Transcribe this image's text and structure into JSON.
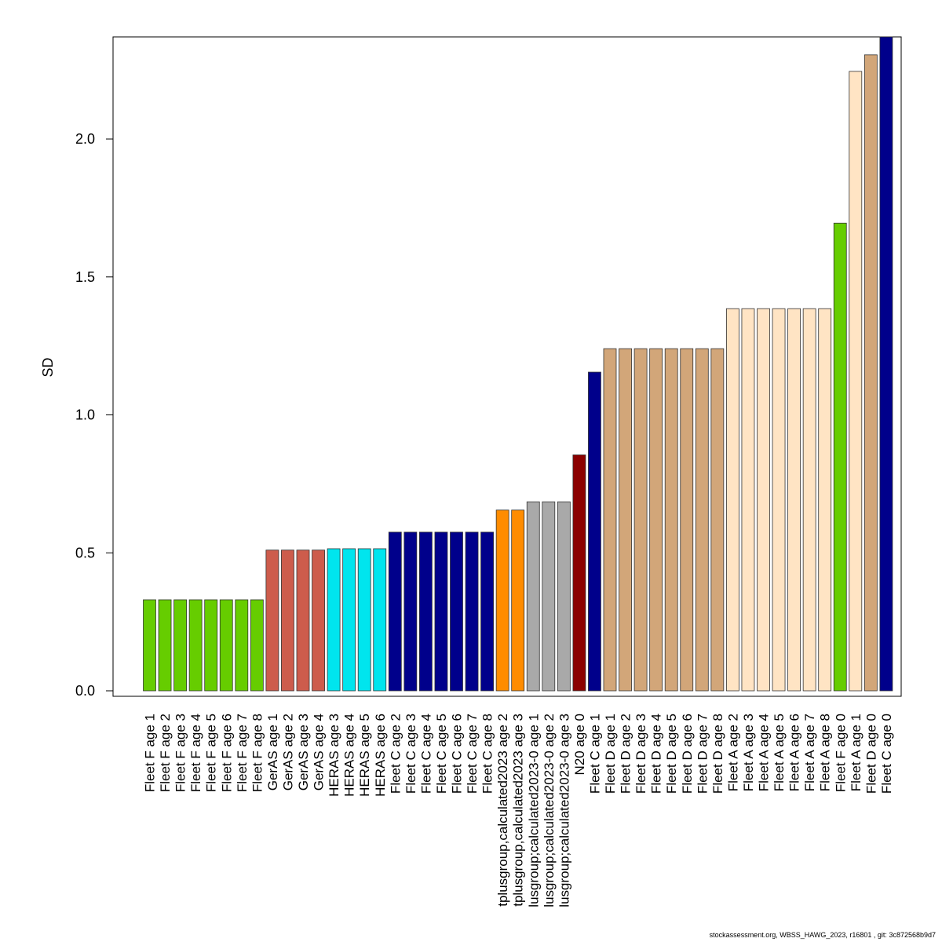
{
  "chart_data": {
    "type": "bar",
    "ylabel": "SD",
    "xlabel": "",
    "ylim": [
      0,
      2.37
    ],
    "yticks": [
      0.0,
      0.5,
      1.0,
      1.5,
      2.0
    ],
    "ytick_labels": [
      "0.0",
      "0.5",
      "1.0",
      "1.5",
      "2.0"
    ],
    "grid": false,
    "categories": [
      "Fleet F age 1",
      "Fleet F age 2",
      "Fleet F age 3",
      "Fleet F age 4",
      "Fleet F age 5",
      "Fleet F age 6",
      "Fleet F age 7",
      "Fleet F age 8",
      "GerAS age 1",
      "GerAS age 2",
      "GerAS age 3",
      "GerAS age 4",
      "HERAS age 3",
      "HERAS age 4",
      "HERAS age 5",
      "HERAS age 6",
      "Fleet C age 2",
      "Fleet C age 3",
      "Fleet C age 4",
      "Fleet C age 5",
      "Fleet C age 6",
      "Fleet C age 7",
      "Fleet C age 8",
      "tplusgroup,calculated2023 age 2",
      "tplusgroup,calculated2023 age 3",
      "lusgroup;calculated2023-0 age 1",
      "lusgroup;calculated2023-0 age 2",
      "lusgroup;calculated2023-0 age 3",
      "N20 age 0",
      "Fleet C age 1",
      "Fleet D age 1",
      "Fleet D age 2",
      "Fleet D age 3",
      "Fleet D age 4",
      "Fleet D age 5",
      "Fleet D age 6",
      "Fleet D age 7",
      "Fleet D age 8",
      "Fleet A age 2",
      "Fleet A age 3",
      "Fleet A age 4",
      "Fleet A age 5",
      "Fleet A age 6",
      "Fleet A age 7",
      "Fleet A age 8",
      "Fleet F age 0",
      "Fleet A age 1",
      "Fleet D age 0",
      "Fleet C age 0"
    ],
    "values": [
      0.33,
      0.33,
      0.33,
      0.33,
      0.33,
      0.33,
      0.33,
      0.33,
      0.51,
      0.51,
      0.51,
      0.51,
      0.515,
      0.515,
      0.515,
      0.515,
      0.575,
      0.575,
      0.575,
      0.575,
      0.575,
      0.575,
      0.575,
      0.655,
      0.655,
      0.685,
      0.685,
      0.685,
      0.855,
      1.155,
      1.24,
      1.24,
      1.24,
      1.24,
      1.24,
      1.24,
      1.24,
      1.24,
      1.385,
      1.385,
      1.385,
      1.385,
      1.385,
      1.385,
      1.385,
      1.695,
      2.245,
      2.305,
      2.37
    ],
    "colors": [
      "#66cd00",
      "#66cd00",
      "#66cd00",
      "#66cd00",
      "#66cd00",
      "#66cd00",
      "#66cd00",
      "#66cd00",
      "#cd5c4c",
      "#cd5c4c",
      "#cd5c4c",
      "#cd5c4c",
      "#00e5ee",
      "#00e5ee",
      "#00e5ee",
      "#00e5ee",
      "#00008b",
      "#00008b",
      "#00008b",
      "#00008b",
      "#00008b",
      "#00008b",
      "#00008b",
      "#ff8c00",
      "#ff8c00",
      "#a9a9a9",
      "#a9a9a9",
      "#a9a9a9",
      "#8b0000",
      "#00008b",
      "#d2a679",
      "#d2a679",
      "#d2a679",
      "#d2a679",
      "#d2a679",
      "#d2a679",
      "#d2a679",
      "#d2a679",
      "#ffe4c4",
      "#ffe4c4",
      "#ffe4c4",
      "#ffe4c4",
      "#ffe4c4",
      "#ffe4c4",
      "#ffe4c4",
      "#66cd00",
      "#ffe4c4",
      "#d2a679",
      "#00008b"
    ]
  },
  "footer": "stockassessment.org, WBSS_HAWG_2023, r16801 , git: 3c872568b9d7"
}
